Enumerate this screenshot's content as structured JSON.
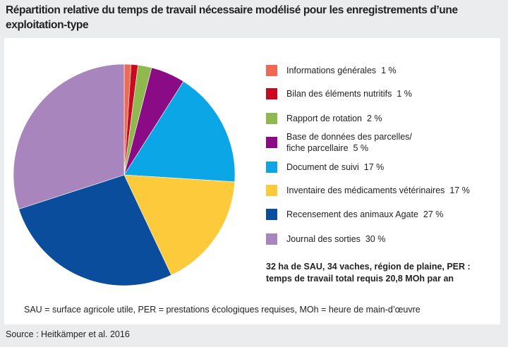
{
  "chart_data": {
    "type": "pie",
    "title": "Répartition relative du temps de travail nécessaire modélisé pour les enregistrements d’une exploitation-type",
    "legend_position": "right",
    "start": "top, clockwise",
    "series": [
      {
        "name": "Informations générales",
        "label": "1 %",
        "value": 1,
        "color": "#ee6a55"
      },
      {
        "name": "Bilan des éléments nutritifs",
        "label": "1 %",
        "value": 1,
        "color": "#c8091f"
      },
      {
        "name": "Rapport de rotation",
        "label": "2 %",
        "value": 2,
        "color": "#8fb84e"
      },
      {
        "name": "Base de données des parcelles/ fiche parcellaire",
        "name_line1": "Base de données des parcelles/",
        "name_line2": "fiche parcellaire",
        "label": "5 %",
        "value": 5,
        "color": "#8b0a86"
      },
      {
        "name": "Document de suivi",
        "label": "17 %",
        "value": 17,
        "color": "#0aa6e6"
      },
      {
        "name": "Inventaire des médicaments vétérinaires",
        "label": "17 %",
        "value": 17,
        "color": "#fdca3c"
      },
      {
        "name": "Recensement des animaux Agate",
        "label": "27 %",
        "value": 27,
        "color": "#0a4d9d"
      },
      {
        "name": "Journal des sorties",
        "label": "30 %",
        "value": 30,
        "color": "#a885bd"
      }
    ],
    "note_line1": "32 ha de SAU, 34 vaches, région de plaine, PER  :",
    "note_line2": "temps de travail total requis 20,8 MOh par an"
  },
  "footnote": "SAU = surface agricole utile, PER = prestations écologiques requises, MOh = heure de main-d’œuvre",
  "source": "Source : Heitkämper et al. 2016"
}
